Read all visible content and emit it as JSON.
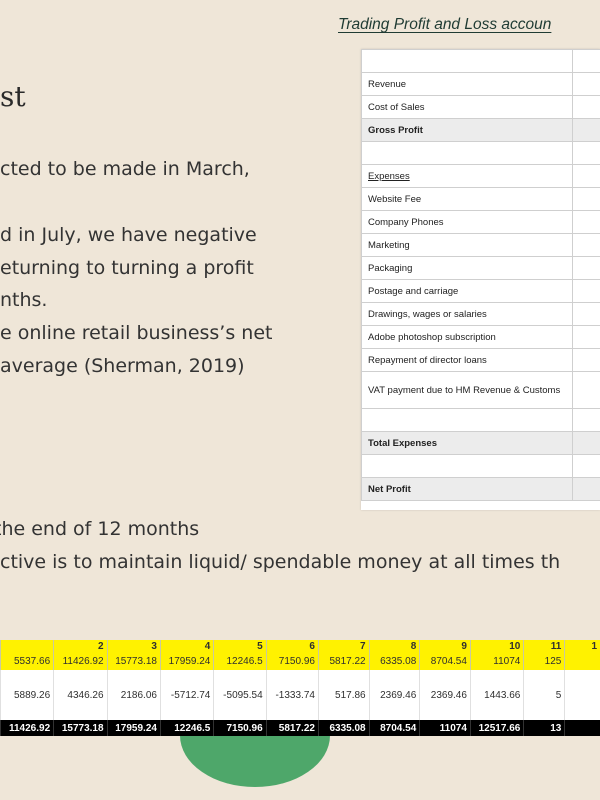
{
  "header": {
    "title": "Trading Profit and Loss accoun"
  },
  "slide": {
    "heading": "st",
    "lines": [
      "cted to be made in March,",
      "d in July, we have negative",
      "eturning to turning a profit",
      "nths.",
      "e online retail business’s net",
      "average (Sherman, 2019)"
    ],
    "bottom_lines": [
      " the end of 12 months",
      "ctive is to maintain liquid/ spendable money at all times th"
    ]
  },
  "profit_loss": {
    "rows": [
      {
        "label": "",
        "style": "plain"
      },
      {
        "label": "Revenue",
        "style": "plain"
      },
      {
        "label": "Cost of Sales",
        "style": "plain"
      },
      {
        "label": "Gross Profit",
        "style": "shade"
      },
      {
        "label": "",
        "style": "plain"
      },
      {
        "label": "Expenses",
        "style": "ul"
      },
      {
        "label": "Website Fee",
        "style": "plain"
      },
      {
        "label": "Company Phones",
        "style": "plain"
      },
      {
        "label": "Marketing",
        "style": "plain"
      },
      {
        "label": "Packaging",
        "style": "plain"
      },
      {
        "label": "Postage and carriage",
        "style": "plain"
      },
      {
        "label": "Drawings, wages or salaries",
        "style": "plain"
      },
      {
        "label": "Adobe photoshop subscription",
        "style": "plain"
      },
      {
        "label": "Repayment of director loans",
        "style": "plain"
      },
      {
        "label": "VAT payment due to HM Revenue & Customs",
        "style": "tall"
      },
      {
        "label": "",
        "style": "plain"
      },
      {
        "label": "Total Expenses",
        "style": "shade"
      },
      {
        "label": "",
        "style": "plain"
      },
      {
        "label": "Net Profit",
        "style": "shade"
      }
    ]
  },
  "cashflow": {
    "months": [
      "",
      "2",
      "3",
      "4",
      "5",
      "6",
      "7",
      "8",
      "9",
      "10",
      "11",
      "1"
    ],
    "opening": [
      "5537.66",
      "11426.92",
      "15773.18",
      "17959.24",
      "12246.5",
      "7150.96",
      "5817.22",
      "6335.08",
      "8704.54",
      "11074",
      "125"
    ],
    "net_flow": [
      "5889.26",
      "4346.26",
      "2186.06",
      "-5712.74",
      "-5095.54",
      "-1333.74",
      "517.86",
      "2369.46",
      "2369.46",
      "1443.66",
      "5"
    ],
    "closing": [
      "11426.92",
      "15773.18",
      "17959.24",
      "12246.5",
      "7150.96",
      "5817.22",
      "6335.08",
      "8704.54",
      "11074",
      "12517.66",
      "13"
    ]
  }
}
